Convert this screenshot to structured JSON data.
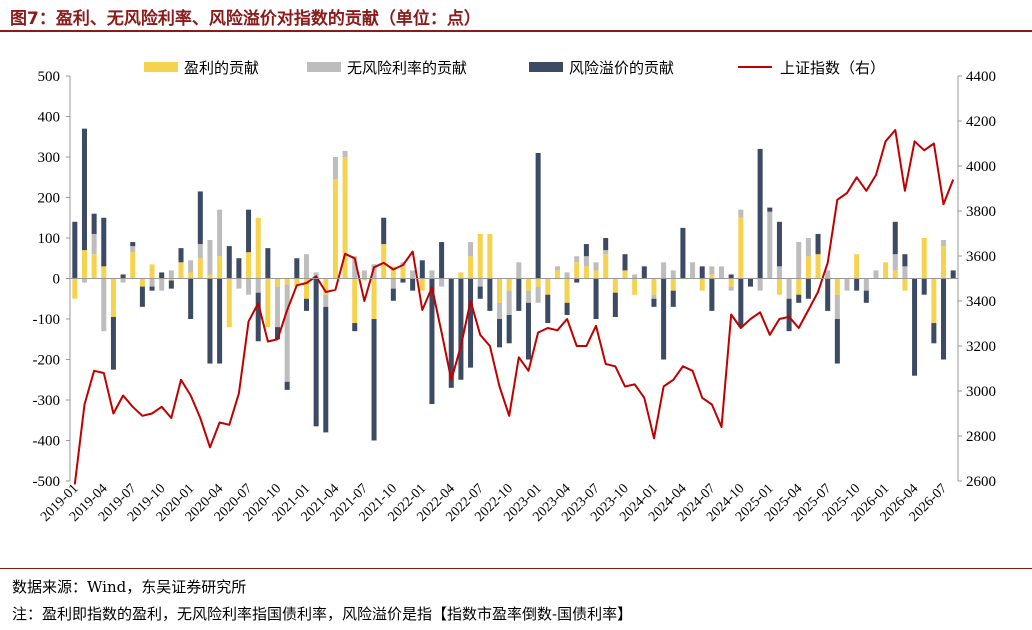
{
  "header": {
    "title": "图7：盈利、无风险利率、风险溢价对指数的贡献（单位：点）"
  },
  "footer": {
    "source": "数据来源：Wind，东吴证券研究所",
    "note": "注：盈利即指数的盈利，无风险利率指国债利率，风险溢价是指【指数市盈率倒数-国债利率】"
  },
  "chart_data": {
    "type": "bar",
    "stacked": true,
    "categories": [
      "2019-01",
      "2019-02",
      "2019-03",
      "2019-04",
      "2019-05",
      "2019-06",
      "2019-07",
      "2019-08",
      "2019-09",
      "2019-10",
      "2019-11",
      "2019-12",
      "2020-01",
      "2020-02",
      "2020-03",
      "2020-04",
      "2020-05",
      "2020-06",
      "2020-07",
      "2020-08",
      "2020-09",
      "2020-10",
      "2020-11",
      "2020-12",
      "2021-01",
      "2021-02",
      "2021-03",
      "2021-04",
      "2021-05",
      "2021-06",
      "2021-07",
      "2021-08",
      "2021-09",
      "2021-10",
      "2021-11",
      "2021-12",
      "2022-01",
      "2022-02",
      "2022-03",
      "2022-04",
      "2022-05",
      "2022-06",
      "2022-07",
      "2022-08",
      "2022-09",
      "2022-10",
      "2022-11",
      "2022-12",
      "2023-01",
      "2023-02",
      "2023-03",
      "2023-04",
      "2023-05",
      "2023-06",
      "2023-07",
      "2023-08",
      "2023-09",
      "2023-10",
      "2023-11",
      "2023-12",
      "2024-01",
      "2024-02",
      "2024-03",
      "2024-04",
      "2024-05",
      "2024-06",
      "2024-07",
      "2024-08",
      "2024-09",
      "2024-10",
      "2024-11",
      "2024-12",
      "2025-01",
      "2025-02",
      "2025-03",
      "2025-04",
      "2025-05",
      "2025-06",
      "2025-07",
      "2025-08",
      "2025-09",
      "2025-10",
      "2025-11",
      "2025-12",
      "2026-01",
      "2026-02",
      "2026-03",
      "2026-04",
      "2026-05",
      "2026-06",
      "2026-07",
      "2026-08"
    ],
    "x_tick_labels": [
      "2019-01",
      "2019-04",
      "2019-07",
      "2019-10",
      "2020-01",
      "2020-04",
      "2020-07",
      "2020-10",
      "2021-01",
      "2021-04",
      "2021-07",
      "2021-10",
      "2022-01",
      "2022-04",
      "2022-07",
      "2022-10",
      "2023-01",
      "2023-04",
      "2023-07",
      "2023-10",
      "2024-01",
      "2024-04",
      "2024-07",
      "2024-10",
      "2025-01",
      "2025-04",
      "2025-07",
      "2025-10",
      "2026-01",
      "2026-04",
      "2026-07"
    ],
    "series": [
      {
        "name": "盈利的贡献",
        "axis": "left",
        "color": "#f5d34e",
        "values": [
          -50,
          70,
          60,
          30,
          -95,
          0,
          65,
          -20,
          35,
          0,
          -5,
          40,
          15,
          50,
          10,
          55,
          -120,
          0,
          65,
          150,
          -120,
          -20,
          -15,
          -20,
          -50,
          0,
          -40,
          245,
          300,
          -110,
          -5,
          -100,
          85,
          30,
          30,
          0,
          -30,
          0,
          0,
          0,
          15,
          55,
          110,
          110,
          -60,
          -30,
          0,
          -30,
          -20,
          -40,
          20,
          -60,
          40,
          30,
          20,
          60,
          -35,
          20,
          -40,
          0,
          -40,
          0,
          -30,
          0,
          0,
          -30,
          10,
          0,
          -20,
          150,
          0,
          0,
          0,
          -40,
          0,
          -40,
          55,
          60,
          0,
          -40,
          0,
          60,
          0,
          0,
          40,
          20,
          -30,
          0,
          100,
          -110,
          80,
          0
        ]
      },
      {
        "name": "无风险利率的贡献",
        "axis": "left",
        "color": "#bdbdbd",
        "values": [
          0,
          -10,
          50,
          -130,
          0,
          -10,
          15,
          0,
          -20,
          -30,
          20,
          0,
          30,
          35,
          85,
          115,
          0,
          -25,
          -40,
          -35,
          0,
          -100,
          -240,
          0,
          60,
          15,
          -30,
          55,
          15,
          55,
          20,
          35,
          0,
          -25,
          10,
          20,
          0,
          20,
          -20,
          0,
          0,
          35,
          -20,
          0,
          -40,
          -60,
          40,
          -30,
          -40,
          0,
          10,
          15,
          15,
          25,
          20,
          10,
          0,
          0,
          10,
          0,
          -10,
          40,
          20,
          0,
          40,
          0,
          20,
          30,
          -10,
          20,
          0,
          -30,
          165,
          30,
          -50,
          90,
          45,
          0,
          20,
          -60,
          -30,
          0,
          -30,
          20,
          0,
          40,
          30,
          0,
          0,
          0,
          15,
          0
        ]
      },
      {
        "name": "风险溢价的贡献",
        "axis": "left",
        "color": "#3c4a63",
        "values": [
          140,
          300,
          50,
          120,
          -130,
          10,
          10,
          -50,
          -10,
          15,
          -20,
          35,
          -100,
          130,
          -210,
          -210,
          80,
          50,
          105,
          -120,
          75,
          -30,
          -20,
          50,
          -30,
          -365,
          -310,
          0,
          0,
          -20,
          0,
          -300,
          65,
          -30,
          -10,
          -30,
          45,
          -310,
          90,
          -270,
          -250,
          -220,
          -30,
          -80,
          -70,
          -70,
          -80,
          -140,
          310,
          -70,
          0,
          -30,
          -10,
          30,
          -100,
          30,
          -60,
          40,
          0,
          30,
          -20,
          -200,
          -40,
          125,
          0,
          30,
          -80,
          0,
          10,
          -120,
          -20,
          320,
          10,
          110,
          -80,
          -20,
          -50,
          50,
          -80,
          -110,
          0,
          -30,
          -30,
          0,
          0,
          80,
          30,
          -240,
          -40,
          -50,
          -200,
          20
        ]
      },
      {
        "name": "上证指数（右）",
        "axis": "right",
        "type": "line",
        "color": "#c00000",
        "values": [
          2585,
          2940,
          3090,
          3080,
          2900,
          2980,
          2930,
          2890,
          2900,
          2930,
          2880,
          3050,
          2980,
          2880,
          2750,
          2860,
          2850,
          2990,
          3310,
          3390,
          3220,
          3230,
          3360,
          3470,
          3480,
          3510,
          3440,
          3450,
          3610,
          3590,
          3400,
          3550,
          3570,
          3540,
          3560,
          3620,
          3360,
          3460,
          3260,
          3050,
          3200,
          3400,
          3250,
          3200,
          3020,
          2890,
          3150,
          3090,
          3260,
          3280,
          3270,
          3320,
          3200,
          3200,
          3290,
          3120,
          3110,
          3020,
          3030,
          2970,
          2790,
          3020,
          3050,
          3110,
          3090,
          2970,
          2940,
          2840,
          3340,
          3280,
          3320,
          3350,
          3250,
          3320,
          3330,
          3280,
          3360,
          3440,
          3570,
          3850,
          3880,
          3950,
          3890,
          3960,
          4110,
          4160,
          3890,
          4110,
          4070,
          4100,
          3830,
          3940
        ]
      }
    ],
    "y_left": {
      "min": -500,
      "max": 500,
      "ticks": [
        -500,
        -400,
        -300,
        -200,
        -100,
        0,
        100,
        200,
        300,
        400,
        500
      ]
    },
    "y_right": {
      "min": 2600,
      "max": 4400,
      "ticks": [
        2600,
        2800,
        3000,
        3200,
        3400,
        3600,
        3800,
        4000,
        4200,
        4400
      ]
    },
    "legend_position": "top",
    "grid": false
  }
}
